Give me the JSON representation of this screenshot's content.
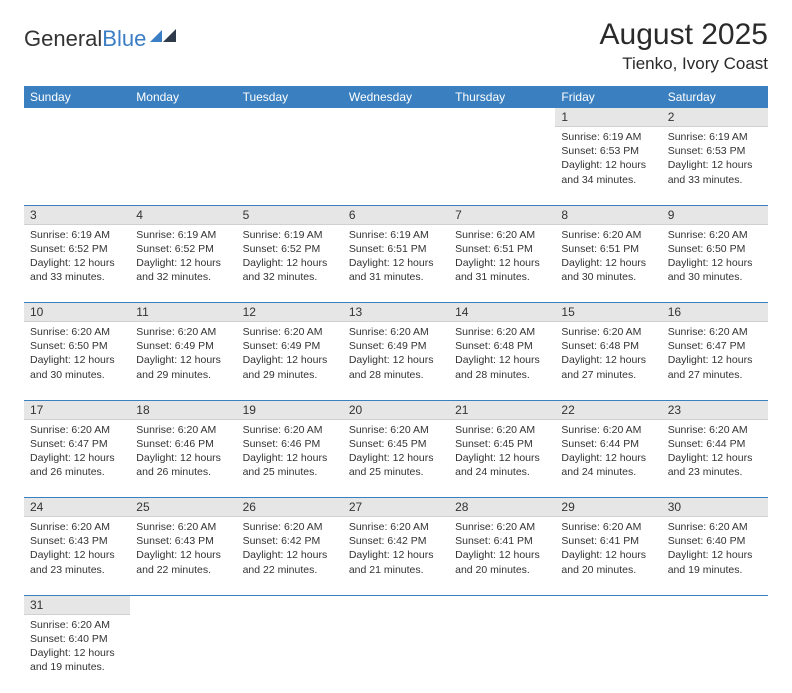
{
  "logo": {
    "general": "General",
    "blue": "Blue"
  },
  "title": "August 2025",
  "location": "Tienko, Ivory Coast",
  "colors": {
    "header_bg": "#3a7fbf",
    "header_text": "#ffffff",
    "daynum_bg": "#e6e6e6",
    "sep": "#3a7fbf",
    "page_bg": "#ffffff",
    "text": "#333333"
  },
  "weekdays": [
    "Sunday",
    "Monday",
    "Tuesday",
    "Wednesday",
    "Thursday",
    "Friday",
    "Saturday"
  ],
  "weeks": [
    [
      null,
      null,
      null,
      null,
      null,
      {
        "n": "1",
        "sunrise": "Sunrise: 6:19 AM",
        "sunset": "Sunset: 6:53 PM",
        "daylight": "Daylight: 12 hours and 34 minutes."
      },
      {
        "n": "2",
        "sunrise": "Sunrise: 6:19 AM",
        "sunset": "Sunset: 6:53 PM",
        "daylight": "Daylight: 12 hours and 33 minutes."
      }
    ],
    [
      {
        "n": "3",
        "sunrise": "Sunrise: 6:19 AM",
        "sunset": "Sunset: 6:52 PM",
        "daylight": "Daylight: 12 hours and 33 minutes."
      },
      {
        "n": "4",
        "sunrise": "Sunrise: 6:19 AM",
        "sunset": "Sunset: 6:52 PM",
        "daylight": "Daylight: 12 hours and 32 minutes."
      },
      {
        "n": "5",
        "sunrise": "Sunrise: 6:19 AM",
        "sunset": "Sunset: 6:52 PM",
        "daylight": "Daylight: 12 hours and 32 minutes."
      },
      {
        "n": "6",
        "sunrise": "Sunrise: 6:19 AM",
        "sunset": "Sunset: 6:51 PM",
        "daylight": "Daylight: 12 hours and 31 minutes."
      },
      {
        "n": "7",
        "sunrise": "Sunrise: 6:20 AM",
        "sunset": "Sunset: 6:51 PM",
        "daylight": "Daylight: 12 hours and 31 minutes."
      },
      {
        "n": "8",
        "sunrise": "Sunrise: 6:20 AM",
        "sunset": "Sunset: 6:51 PM",
        "daylight": "Daylight: 12 hours and 30 minutes."
      },
      {
        "n": "9",
        "sunrise": "Sunrise: 6:20 AM",
        "sunset": "Sunset: 6:50 PM",
        "daylight": "Daylight: 12 hours and 30 minutes."
      }
    ],
    [
      {
        "n": "10",
        "sunrise": "Sunrise: 6:20 AM",
        "sunset": "Sunset: 6:50 PM",
        "daylight": "Daylight: 12 hours and 30 minutes."
      },
      {
        "n": "11",
        "sunrise": "Sunrise: 6:20 AM",
        "sunset": "Sunset: 6:49 PM",
        "daylight": "Daylight: 12 hours and 29 minutes."
      },
      {
        "n": "12",
        "sunrise": "Sunrise: 6:20 AM",
        "sunset": "Sunset: 6:49 PM",
        "daylight": "Daylight: 12 hours and 29 minutes."
      },
      {
        "n": "13",
        "sunrise": "Sunrise: 6:20 AM",
        "sunset": "Sunset: 6:49 PM",
        "daylight": "Daylight: 12 hours and 28 minutes."
      },
      {
        "n": "14",
        "sunrise": "Sunrise: 6:20 AM",
        "sunset": "Sunset: 6:48 PM",
        "daylight": "Daylight: 12 hours and 28 minutes."
      },
      {
        "n": "15",
        "sunrise": "Sunrise: 6:20 AM",
        "sunset": "Sunset: 6:48 PM",
        "daylight": "Daylight: 12 hours and 27 minutes."
      },
      {
        "n": "16",
        "sunrise": "Sunrise: 6:20 AM",
        "sunset": "Sunset: 6:47 PM",
        "daylight": "Daylight: 12 hours and 27 minutes."
      }
    ],
    [
      {
        "n": "17",
        "sunrise": "Sunrise: 6:20 AM",
        "sunset": "Sunset: 6:47 PM",
        "daylight": "Daylight: 12 hours and 26 minutes."
      },
      {
        "n": "18",
        "sunrise": "Sunrise: 6:20 AM",
        "sunset": "Sunset: 6:46 PM",
        "daylight": "Daylight: 12 hours and 26 minutes."
      },
      {
        "n": "19",
        "sunrise": "Sunrise: 6:20 AM",
        "sunset": "Sunset: 6:46 PM",
        "daylight": "Daylight: 12 hours and 25 minutes."
      },
      {
        "n": "20",
        "sunrise": "Sunrise: 6:20 AM",
        "sunset": "Sunset: 6:45 PM",
        "daylight": "Daylight: 12 hours and 25 minutes."
      },
      {
        "n": "21",
        "sunrise": "Sunrise: 6:20 AM",
        "sunset": "Sunset: 6:45 PM",
        "daylight": "Daylight: 12 hours and 24 minutes."
      },
      {
        "n": "22",
        "sunrise": "Sunrise: 6:20 AM",
        "sunset": "Sunset: 6:44 PM",
        "daylight": "Daylight: 12 hours and 24 minutes."
      },
      {
        "n": "23",
        "sunrise": "Sunrise: 6:20 AM",
        "sunset": "Sunset: 6:44 PM",
        "daylight": "Daylight: 12 hours and 23 minutes."
      }
    ],
    [
      {
        "n": "24",
        "sunrise": "Sunrise: 6:20 AM",
        "sunset": "Sunset: 6:43 PM",
        "daylight": "Daylight: 12 hours and 23 minutes."
      },
      {
        "n": "25",
        "sunrise": "Sunrise: 6:20 AM",
        "sunset": "Sunset: 6:43 PM",
        "daylight": "Daylight: 12 hours and 22 minutes."
      },
      {
        "n": "26",
        "sunrise": "Sunrise: 6:20 AM",
        "sunset": "Sunset: 6:42 PM",
        "daylight": "Daylight: 12 hours and 22 minutes."
      },
      {
        "n": "27",
        "sunrise": "Sunrise: 6:20 AM",
        "sunset": "Sunset: 6:42 PM",
        "daylight": "Daylight: 12 hours and 21 minutes."
      },
      {
        "n": "28",
        "sunrise": "Sunrise: 6:20 AM",
        "sunset": "Sunset: 6:41 PM",
        "daylight": "Daylight: 12 hours and 20 minutes."
      },
      {
        "n": "29",
        "sunrise": "Sunrise: 6:20 AM",
        "sunset": "Sunset: 6:41 PM",
        "daylight": "Daylight: 12 hours and 20 minutes."
      },
      {
        "n": "30",
        "sunrise": "Sunrise: 6:20 AM",
        "sunset": "Sunset: 6:40 PM",
        "daylight": "Daylight: 12 hours and 19 minutes."
      }
    ],
    [
      {
        "n": "31",
        "sunrise": "Sunrise: 6:20 AM",
        "sunset": "Sunset: 6:40 PM",
        "daylight": "Daylight: 12 hours and 19 minutes."
      },
      null,
      null,
      null,
      null,
      null,
      null
    ]
  ]
}
